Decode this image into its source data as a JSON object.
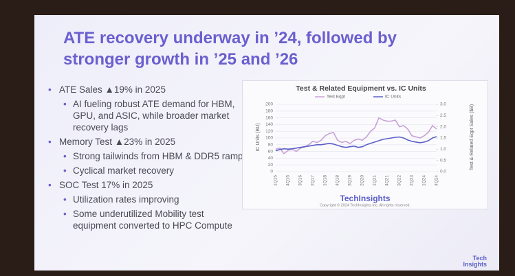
{
  "slide": {
    "title_lines": [
      "ATE recovery underway in ’24, followed by",
      "stronger growth in ’25 and ’26"
    ],
    "bullets": [
      {
        "text": "ATE Sales ▲19% in 2025",
        "sub": [
          "AI fueling robust ATE demand for HBM, GPU, and ASIC, while broader market recovery lags"
        ]
      },
      {
        "text": "Memory Test ▲23% in 2025",
        "sub": [
          "Strong tailwinds from HBM & DDR5 ramp",
          "Cyclical market recovery"
        ]
      },
      {
        "text": "SOC Test 17% in 2025",
        "sub": [
          "Utilization rates improving",
          "Some underutilized Mobility test equipment converted to HPC Compute"
        ]
      }
    ],
    "chart_logo": "TechInsights",
    "chart_copyright": "Copyright © 2024 TechInsights Inc. All rights reserved.",
    "logo": [
      "Tech",
      "Insights"
    ]
  },
  "chart_data": {
    "type": "line",
    "title": "Test & Related Equipment vs. IC Units",
    "y_label": "IC Units (BU)",
    "y2_label": "Test & Related Eqpt Sales ($B)",
    "categories": [
      "1Q15",
      null,
      null,
      "4Q15",
      null,
      null,
      "3Q16",
      null,
      null,
      "2Q17",
      null,
      null,
      "1Q18",
      null,
      null,
      "4Q18",
      null,
      null,
      "3Q19",
      null,
      null,
      "2Q20",
      null,
      null,
      "1Q21",
      null,
      null,
      "4Q21",
      null,
      null,
      "3Q22",
      null,
      null,
      "2Q23",
      null,
      null,
      "1Q24",
      null,
      null,
      "4Q24"
    ],
    "series": [
      {
        "name": "Test Eqpt",
        "color": "#c9a0d6",
        "axis": "y2",
        "values": [
          1.0,
          1.05,
          0.8,
          0.95,
          1.0,
          0.9,
          1.05,
          1.1,
          1.2,
          1.35,
          1.3,
          1.4,
          1.6,
          1.7,
          1.75,
          1.4,
          1.3,
          1.35,
          1.25,
          1.4,
          1.45,
          1.4,
          1.55,
          1.8,
          1.95,
          2.4,
          2.3,
          2.25,
          2.25,
          2.3,
          2.0,
          2.05,
          1.9,
          1.6,
          1.55,
          1.5,
          1.6,
          1.75,
          2.05,
          1.9
        ]
      },
      {
        "name": "IC Units",
        "color": "#5b5fc7",
        "values": [
          62,
          66,
          68,
          67,
          68,
          70,
          72,
          74,
          76,
          78,
          80,
          80,
          82,
          84,
          82,
          78,
          74,
          72,
          74,
          76,
          72,
          74,
          80,
          84,
          88,
          92,
          96,
          98,
          100,
          102,
          103,
          100,
          94,
          90,
          88,
          86,
          88,
          92,
          100,
          104
        ]
      }
    ],
    "ylim": [
      0,
      200
    ],
    "yticks": [
      0,
      20,
      40,
      60,
      80,
      100,
      120,
      140,
      160,
      180,
      200
    ],
    "y2lim": [
      0,
      3
    ],
    "y2ticks": [
      {
        "value": 0,
        "label": "0.0"
      },
      {
        "value": 0.5,
        "label": "0.5"
      },
      {
        "value": 1,
        "label": "1.0"
      },
      {
        "value": 1.5,
        "label": "1.5"
      },
      {
        "value": 2,
        "label": "2.0"
      },
      {
        "value": 2.5,
        "label": "2.5"
      },
      {
        "value": 3,
        "label": "3.0"
      }
    ],
    "grid": true
  }
}
